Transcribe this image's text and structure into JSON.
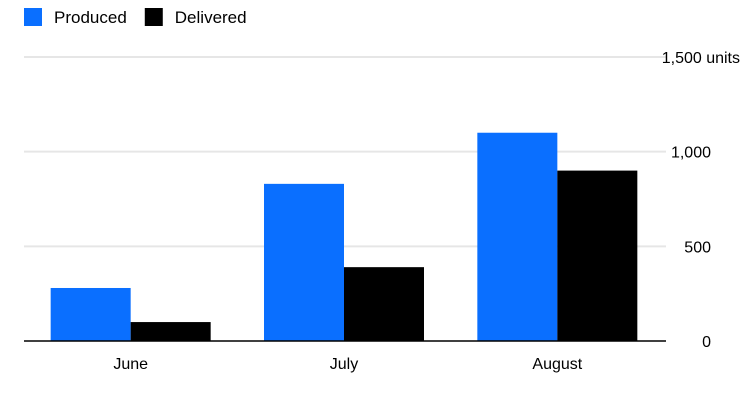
{
  "chart_data": {
    "type": "bar",
    "categories": [
      "June",
      "July",
      "August"
    ],
    "series": [
      {
        "name": "Produced",
        "color": "#0a6fff",
        "values": [
          280,
          830,
          1100
        ]
      },
      {
        "name": "Delivered",
        "color": "#000000",
        "values": [
          100,
          390,
          900
        ]
      }
    ],
    "y_ticks": [
      0,
      500,
      1000,
      1500
    ],
    "y_tick_labels": [
      "0",
      "500",
      "1,000",
      "1,500 units"
    ],
    "ylim": [
      0,
      1500
    ],
    "grid": true,
    "y_axis_position": "right",
    "legend_position": "top-left",
    "title": "",
    "xlabel": "",
    "ylabel": ""
  }
}
